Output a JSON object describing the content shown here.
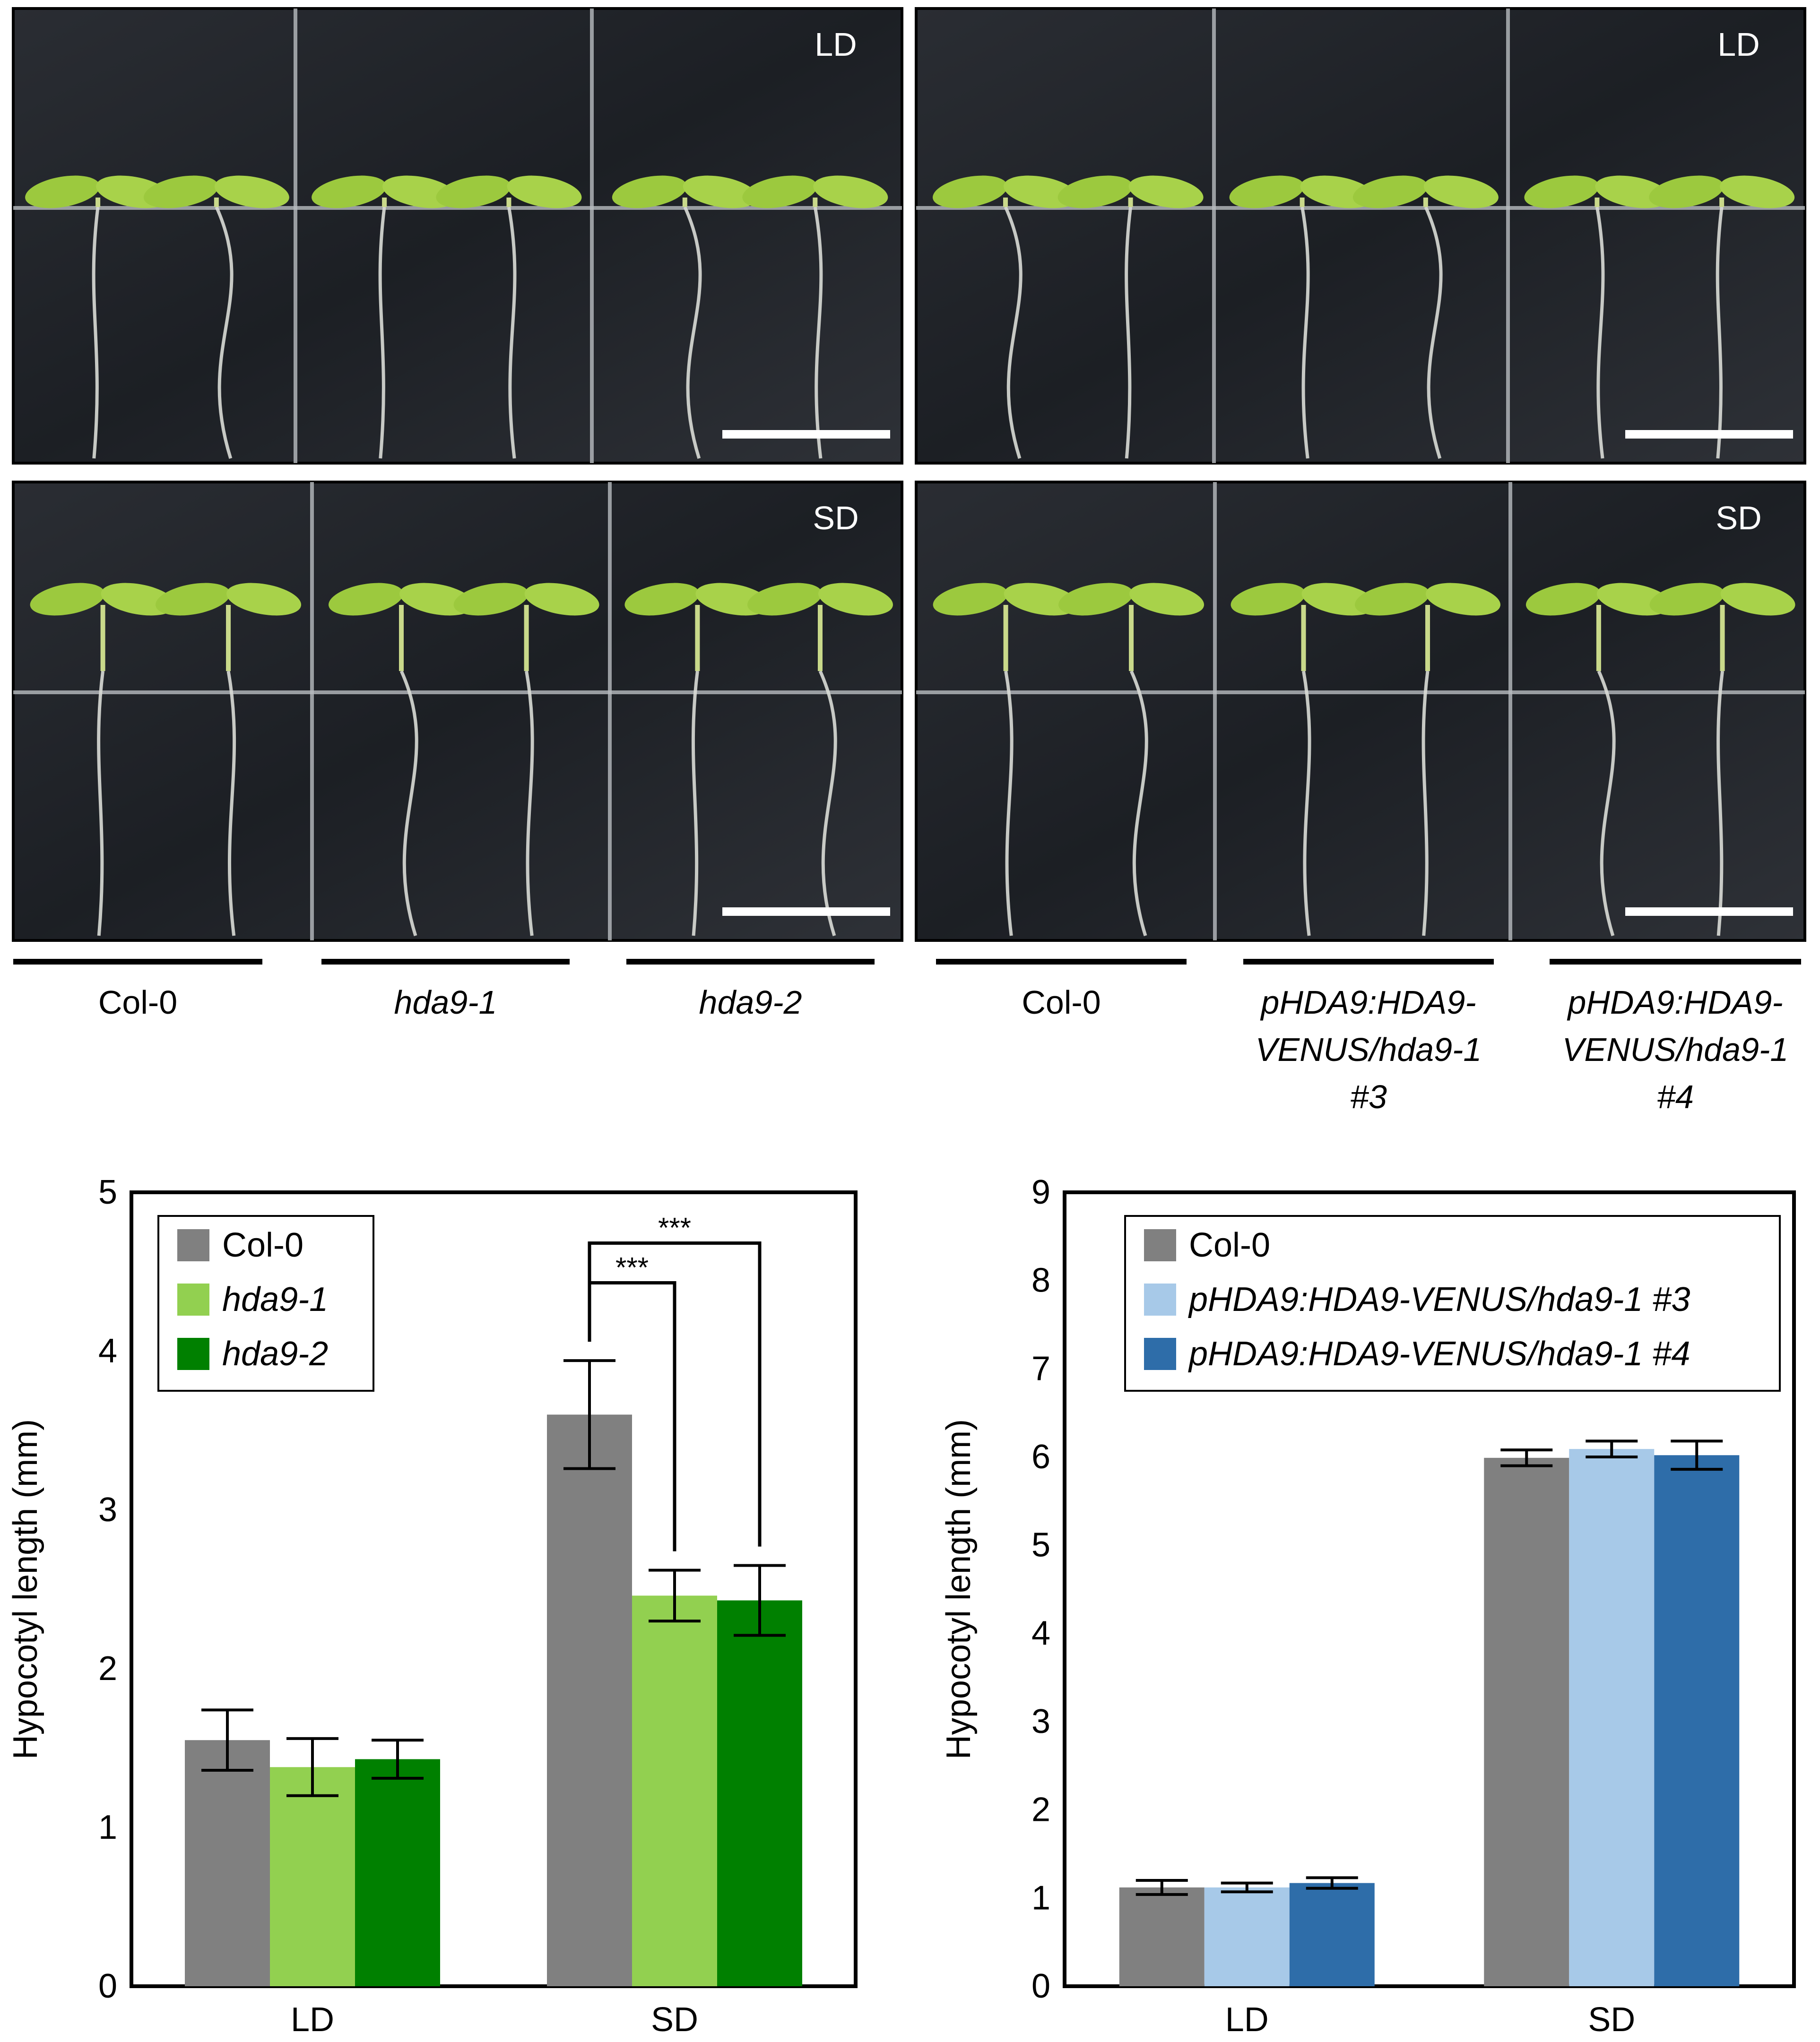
{
  "photos": [
    {
      "condition": "LD"
    },
    {
      "condition": "LD"
    },
    {
      "condition": "SD"
    },
    {
      "condition": "SD"
    }
  ],
  "genotype_labels": [
    {
      "lines": [
        "Col-0"
      ],
      "italic": false
    },
    {
      "lines": [
        "hda9-1"
      ],
      "italic": true
    },
    {
      "lines": [
        "hda9-2"
      ],
      "italic": true
    },
    {
      "lines": [
        "Col-0"
      ],
      "italic": false
    },
    {
      "lines": [
        "pHDA9:HDA9-",
        "VENUS/hda9-1",
        "#3"
      ],
      "italic": true
    },
    {
      "lines": [
        "pHDA9:HDA9-",
        "VENUS/hda9-1",
        "#4"
      ],
      "italic": true
    }
  ],
  "colors": {
    "col0": "#808080",
    "hda9_1": "#92d050",
    "hda9_2": "#008000",
    "line3": "#a7c9e8",
    "line4": "#2e6da9"
  },
  "chart_data": [
    {
      "type": "bar",
      "ylabel": "Hypocotyl length (mm)",
      "ylim": [
        0,
        5
      ],
      "yticks": [
        "0",
        "1",
        "2",
        "3",
        "4",
        "5"
      ],
      "categories": [
        "LD",
        "SD"
      ],
      "legend_position": "top-left",
      "series": [
        {
          "name": "Col-0",
          "italic": false,
          "color": "#808080",
          "values": [
            1.55,
            3.6
          ],
          "errors": [
            0.19,
            0.34
          ]
        },
        {
          "name": "hda9-1",
          "italic": true,
          "color": "#92d050",
          "values": [
            1.38,
            2.46
          ],
          "errors": [
            0.18,
            0.16
          ]
        },
        {
          "name": "hda9-2",
          "italic": true,
          "color": "#008000",
          "values": [
            1.43,
            2.43
          ],
          "errors": [
            0.12,
            0.22
          ]
        }
      ],
      "annotations": [
        {
          "text": "***",
          "category": 1,
          "from_series": 0,
          "to_series": 1,
          "level": 4.43
        },
        {
          "text": "***",
          "category": 1,
          "from_series": 0,
          "to_series": 2,
          "level": 4.68
        }
      ]
    },
    {
      "type": "bar",
      "ylabel": "Hypocotyl length (mm)",
      "ylim": [
        0,
        9
      ],
      "yticks": [
        "0",
        "1",
        "2",
        "3",
        "4",
        "5",
        "6",
        "7",
        "8",
        "9"
      ],
      "categories": [
        "LD",
        "SD"
      ],
      "legend_position": "top-right",
      "series": [
        {
          "name": "Col-0",
          "italic": false,
          "color": "#808080",
          "values": [
            1.12,
            5.99
          ],
          "errors": [
            0.08,
            0.09
          ]
        },
        {
          "name": "pHDA9:HDA9-VENUS/hda9-1 #3",
          "italic": true,
          "color": "#a7c9e8",
          "values": [
            1.12,
            6.09
          ],
          "errors": [
            0.05,
            0.09
          ]
        },
        {
          "name": "pHDA9:HDA9-VENUS/hda9-1 #4",
          "italic": true,
          "color": "#2e6da9",
          "values": [
            1.17,
            6.02
          ],
          "errors": [
            0.06,
            0.16
          ]
        }
      ]
    }
  ]
}
